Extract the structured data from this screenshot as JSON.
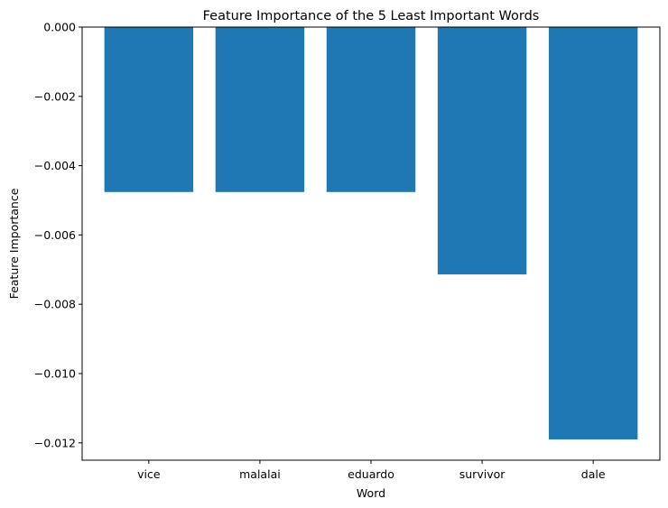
{
  "chart_data": {
    "type": "bar",
    "title": "Feature Importance of the 5 Least Important Words",
    "xlabel": "Word",
    "ylabel": "Feature Importance",
    "categories": [
      "vice",
      "malalai",
      "eduardo",
      "survivor",
      "dale"
    ],
    "values": [
      -0.00476,
      -0.00476,
      -0.00476,
      -0.00714,
      -0.0119
    ],
    "ylim": [
      -0.0125,
      0.0
    ],
    "yticks": [
      0.0,
      -0.002,
      -0.004,
      -0.006,
      -0.008,
      -0.01,
      -0.012
    ],
    "ytick_labels": [
      "0.000",
      "−0.002",
      "−0.004",
      "−0.006",
      "−0.008",
      "−0.010",
      "−0.012"
    ],
    "bar_color": "#1f77b4",
    "grid": false,
    "legend": "none"
  }
}
